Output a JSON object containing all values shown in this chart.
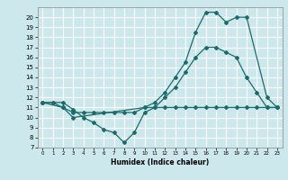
{
  "title": "",
  "xlabel": "Humidex (Indice chaleur)",
  "bg_color": "#cce8ec",
  "grid_color": "#ffffff",
  "line_color": "#1a6b6b",
  "xlim": [
    -0.5,
    23.5
  ],
  "ylim": [
    7,
    21
  ],
  "xticks": [
    0,
    1,
    2,
    3,
    4,
    5,
    6,
    7,
    8,
    9,
    10,
    11,
    12,
    13,
    14,
    15,
    16,
    17,
    18,
    19,
    20,
    21,
    22,
    23
  ],
  "yticks": [
    7,
    8,
    9,
    10,
    11,
    12,
    13,
    14,
    15,
    16,
    17,
    18,
    19,
    20
  ],
  "series": [
    {
      "x": [
        0,
        1,
        2,
        3,
        4,
        5,
        6,
        7,
        8,
        9,
        10,
        11,
        12,
        13,
        14,
        15,
        16,
        17,
        18,
        19,
        20,
        21,
        22,
        23
      ],
      "y": [
        11.5,
        11.5,
        11.5,
        10.8,
        10.0,
        9.5,
        8.8,
        8.5,
        7.5,
        8.5,
        10.5,
        11.0,
        11.0,
        11.0,
        11.0,
        11.0,
        11.0,
        11.0,
        11.0,
        11.0,
        11.0,
        11.0,
        11.0,
        11.0
      ]
    },
    {
      "x": [
        0,
        1,
        2,
        3,
        4,
        5,
        6,
        7,
        8,
        9,
        10,
        11,
        12,
        13,
        14,
        15,
        16,
        17,
        18,
        19,
        20,
        21,
        22,
        23
      ],
      "y": [
        11.5,
        11.5,
        11.0,
        10.5,
        10.5,
        10.5,
        10.5,
        10.5,
        10.5,
        10.5,
        11.0,
        11.0,
        12.0,
        13.0,
        14.5,
        16.0,
        17.0,
        17.0,
        16.5,
        16.0,
        14.0,
        12.5,
        11.0,
        11.0
      ]
    },
    {
      "x": [
        0,
        2,
        3,
        10,
        11,
        12,
        13,
        14,
        15,
        16,
        17,
        18,
        19,
        20,
        22,
        23
      ],
      "y": [
        11.5,
        11.0,
        10.0,
        11.0,
        11.5,
        12.5,
        14.0,
        15.5,
        18.5,
        20.5,
        20.5,
        19.5,
        20.0,
        20.0,
        12.0,
        11.0
      ]
    }
  ]
}
